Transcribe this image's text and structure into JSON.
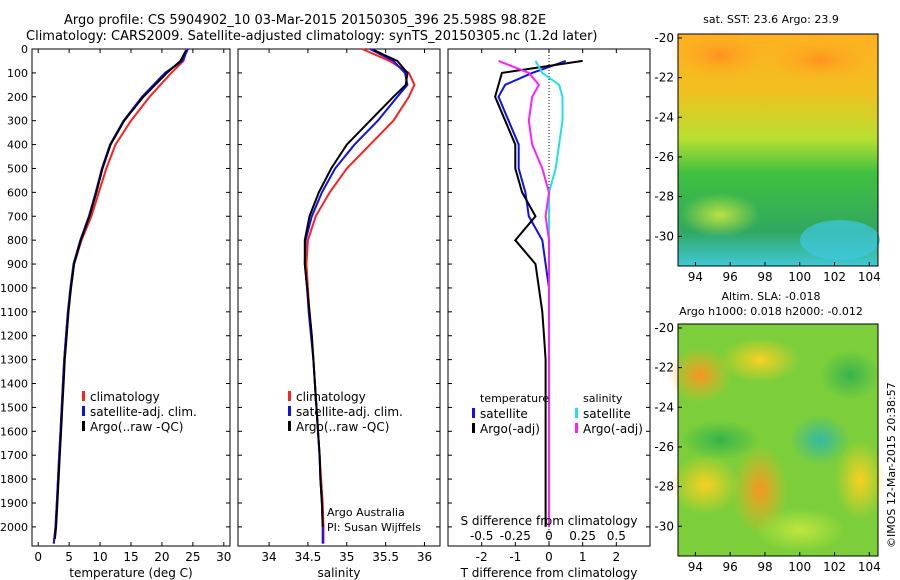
{
  "header": {
    "line1": "Argo profile: CS 5904902_10 03-Mar-2015 20150305_396 25.598S 98.82E",
    "line2": "Climatology: CARS2009. Satellite-adjusted climatology: synTS_20150305.nc (1.2d later)"
  },
  "credit": "©IMOS 12-Mar-2015 20:38:57",
  "colors": {
    "climatology": "#ff2020",
    "satellite": "#1010ee",
    "argo": "#000000",
    "sat_salinity": "#20e0e8",
    "argo_salinity": "#ff20ff"
  },
  "chart_data": [
    {
      "type": "line",
      "panel": "temperature",
      "xlabel": "temperature (deg C)",
      "ylabel": "",
      "xlim": [
        -1,
        31
      ],
      "ylim": [
        2080,
        0
      ],
      "xticks": [
        0,
        5,
        10,
        15,
        20,
        25,
        30
      ],
      "yticks": [
        0,
        100,
        200,
        300,
        400,
        500,
        600,
        700,
        800,
        900,
        1000,
        1100,
        1200,
        1300,
        1400,
        1500,
        1600,
        1700,
        1800,
        1900,
        2000
      ],
      "legend": [
        "climatology",
        "satellite-adj. clim.",
        "Argo(..raw -QC)"
      ],
      "series": [
        {
          "name": "climatology",
          "color": "#ff2020",
          "x": [
            24.0,
            23.5,
            21.5,
            18.0,
            15.0,
            12.5,
            11.0,
            9.8,
            8.6,
            7.0,
            5.8,
            5.3,
            4.8,
            4.5,
            4.2,
            4.0,
            3.8,
            3.6,
            3.4,
            3.2,
            3.0,
            2.8,
            2.6,
            2.5
          ],
          "y": [
            0,
            50,
            100,
            200,
            300,
            400,
            500,
            600,
            700,
            800,
            900,
            1000,
            1100,
            1200,
            1300,
            1400,
            1500,
            1600,
            1700,
            1800,
            1900,
            2000,
            2050,
            2070
          ]
        },
        {
          "name": "satellite-adj. clim.",
          "color": "#1010ee",
          "x": [
            24.2,
            23.3,
            20.5,
            16.8,
            13.8,
            11.6,
            10.3,
            9.3,
            8.2,
            6.8,
            5.7,
            5.2,
            4.8,
            4.5,
            4.2,
            4.0,
            3.8,
            3.6,
            3.4,
            3.2,
            3.0,
            2.8,
            2.6,
            2.5
          ],
          "y": [
            0,
            50,
            100,
            200,
            300,
            400,
            500,
            600,
            700,
            800,
            900,
            1000,
            1100,
            1200,
            1300,
            1400,
            1500,
            1600,
            1700,
            1800,
            1900,
            2000,
            2050,
            2070
          ]
        },
        {
          "name": "Argo(..raw -QC)",
          "color": "#000000",
          "x": [
            23.9,
            23.0,
            20.8,
            17.0,
            13.9,
            11.7,
            10.4,
            9.4,
            8.3,
            6.9,
            5.8,
            5.3,
            4.9,
            4.6,
            4.3,
            4.1,
            3.9,
            3.7,
            3.5,
            3.3,
            3.1,
            2.9,
            2.7
          ],
          "y": [
            5,
            50,
            100,
            200,
            300,
            400,
            500,
            600,
            700,
            800,
            900,
            1000,
            1100,
            1200,
            1300,
            1400,
            1500,
            1600,
            1700,
            1800,
            1900,
            2000,
            2050
          ]
        }
      ]
    },
    {
      "type": "line",
      "panel": "salinity",
      "xlabel": "salinity",
      "xlim": [
        33.6,
        36.2
      ],
      "ylim": [
        2080,
        0
      ],
      "xticks": [
        34,
        34.5,
        35,
        35.5,
        36
      ],
      "legend": [
        "climatology",
        "satellite-adj. clim.",
        "Argo(..raw -QC)"
      ],
      "annotation": [
        "Argo Australia",
        "PI: Susan Wijffels"
      ],
      "series": [
        {
          "name": "climatology",
          "color": "#ff2020",
          "x": [
            35.2,
            35.55,
            35.8,
            35.87,
            35.8,
            35.6,
            35.3,
            35.0,
            34.78,
            34.6,
            34.5,
            34.48,
            34.5,
            34.52,
            34.55,
            34.57,
            34.59,
            34.61,
            34.63,
            34.65,
            34.67,
            34.69,
            34.7,
            34.7
          ],
          "y": [
            0,
            50,
            100,
            150,
            200,
            300,
            400,
            500,
            600,
            700,
            800,
            900,
            1000,
            1100,
            1200,
            1300,
            1400,
            1500,
            1600,
            1700,
            1800,
            1900,
            2000,
            2070
          ]
        },
        {
          "name": "satellite-adj. clim.",
          "color": "#1010ee",
          "x": [
            35.3,
            35.6,
            35.75,
            35.78,
            35.65,
            35.4,
            35.1,
            34.85,
            34.68,
            34.55,
            34.47,
            34.46,
            34.49,
            34.51,
            34.54,
            34.57,
            34.59,
            34.61,
            34.63,
            34.65,
            34.66,
            34.68,
            34.69,
            34.69
          ],
          "y": [
            0,
            50,
            100,
            150,
            200,
            300,
            400,
            500,
            600,
            700,
            800,
            900,
            1000,
            1100,
            1200,
            1300,
            1400,
            1500,
            1600,
            1700,
            1800,
            1900,
            2000,
            2070
          ]
        },
        {
          "name": "Argo(..raw -QC)",
          "color": "#000000",
          "x": [
            35.35,
            35.65,
            35.78,
            35.76,
            35.6,
            35.3,
            35.0,
            34.8,
            34.64,
            34.52,
            34.46,
            34.46,
            34.49,
            34.52,
            34.55,
            34.57,
            34.59,
            34.61,
            34.63,
            34.65,
            34.66,
            34.68,
            34.69
          ],
          "y": [
            5,
            50,
            100,
            150,
            200,
            300,
            400,
            500,
            600,
            700,
            800,
            900,
            1000,
            1100,
            1200,
            1300,
            1400,
            1500,
            1600,
            1700,
            1800,
            1900,
            2000
          ]
        }
      ]
    },
    {
      "type": "line",
      "panel": "difference",
      "xlabel": "T difference from climatology",
      "secondary_xlabel": "S difference from climatology",
      "xlim": [
        -3,
        3
      ],
      "ylim": [
        2080,
        0
      ],
      "xticks": [
        -2,
        -1,
        0,
        1,
        2
      ],
      "top_ticks": [
        "-0.5",
        "-0.25",
        "0",
        "0.25",
        "0.5"
      ],
      "top_tick_positions_T": [
        -2,
        -1,
        0,
        1,
        2
      ],
      "legend_headers": [
        "temperature",
        "salinity"
      ],
      "legend": [
        "satellite",
        "Argo(-adj)",
        "satellite",
        "Argo(-adj)"
      ],
      "series": [
        {
          "name": "satellite",
          "group": "temperature",
          "color": "#1010ee",
          "x": [
            0.5,
            -0.5,
            -1.3,
            -1.5,
            -1.2,
            -0.9,
            -0.9,
            -0.7,
            -0.6,
            -0.2,
            -0.1,
            0,
            0,
            0,
            0,
            0,
            0,
            0,
            0,
            0,
            0,
            0
          ],
          "y": [
            50,
            100,
            150,
            200,
            300,
            400,
            500,
            600,
            700,
            800,
            900,
            1000,
            1100,
            1200,
            1300,
            1400,
            1500,
            1600,
            1700,
            1800,
            1900,
            2000
          ]
        },
        {
          "name": "Argo(-adj)",
          "group": "temperature",
          "color": "#000000",
          "x": [
            1.0,
            -1.4,
            -1.5,
            -1.6,
            -1.3,
            -1.0,
            -1.0,
            -0.8,
            -0.4,
            -1.0,
            -0.4,
            -0.3,
            -0.2,
            -0.15,
            -0.1,
            -0.1,
            -0.1,
            -0.1,
            -0.1,
            -0.1,
            -0.1,
            -0.1
          ],
          "y": [
            50,
            100,
            150,
            200,
            300,
            400,
            500,
            600,
            700,
            800,
            900,
            1000,
            1100,
            1200,
            1300,
            1400,
            1500,
            1600,
            1700,
            1800,
            1900,
            2000
          ]
        },
        {
          "name": "satellite",
          "group": "salinity",
          "color": "#20e0e8",
          "x": [
            -0.4,
            -0.2,
            0.3,
            0.4,
            0.4,
            0.3,
            0.2,
            0.0,
            0.0,
            0.0,
            0.0,
            0.0,
            0.0,
            0.0,
            0.0,
            0.0,
            0.0,
            0.0,
            0.0,
            0.0,
            0.0,
            0.0
          ],
          "y": [
            50,
            100,
            150,
            200,
            300,
            400,
            500,
            600,
            700,
            800,
            900,
            1000,
            1100,
            1200,
            1300,
            1400,
            1500,
            1600,
            1700,
            1800,
            1900,
            2000
          ]
        },
        {
          "name": "Argo(-adj)",
          "group": "salinity",
          "color": "#ff20ff",
          "x": [
            -1.5,
            -0.6,
            -0.3,
            -0.5,
            -0.6,
            -0.5,
            -0.2,
            0.0,
            -0.1,
            0.0,
            0.0,
            0.0,
            0.0,
            0.0,
            0.0,
            0.0,
            0.0,
            0.0,
            0.0,
            0.0,
            0.0,
            0.0
          ],
          "y": [
            50,
            100,
            150,
            200,
            300,
            400,
            500,
            600,
            700,
            800,
            900,
            1000,
            1100,
            1200,
            1300,
            1400,
            1500,
            1600,
            1700,
            1800,
            1900,
            2000
          ]
        }
      ]
    },
    {
      "type": "heatmap",
      "panel": "sst_map",
      "title": "sat. SST: 23.6 Argo: 23.9",
      "xticks": [
        94,
        96,
        98,
        100,
        102,
        104
      ],
      "yticks": [
        -20,
        -22,
        -24,
        -26,
        -28,
        -30
      ],
      "xlim": [
        93,
        104.5
      ],
      "ylim": [
        -31.5,
        -19.8
      ]
    },
    {
      "type": "heatmap",
      "panel": "sla_map",
      "title_lines": [
        "Altim. SLA: -0.018",
        "Argo h1000: 0.018 h2000: -0.012"
      ],
      "xticks": [
        94,
        96,
        98,
        100,
        102,
        104
      ],
      "yticks": [
        -20,
        -22,
        -24,
        -26,
        -28,
        -30
      ],
      "xlim": [
        93,
        104.5
      ],
      "ylim": [
        -31.5,
        -19.8
      ]
    }
  ]
}
